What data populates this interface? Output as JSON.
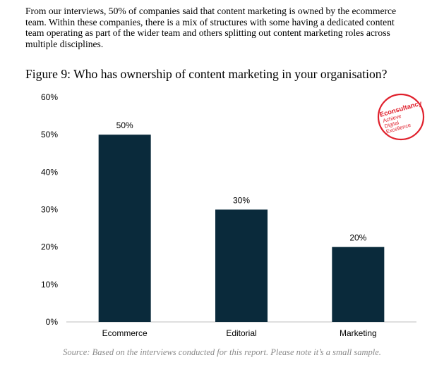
{
  "intro": {
    "lines": [
      "From our interviews, 50% of companies said that content marketing is owned by the ecommerce",
      "team. Within these companies, there is a mix of structures with some having a dedicated content",
      "team operating as part of the wider team and others splitting out content marketing roles across",
      "multiple disciplines."
    ]
  },
  "figure_title": "Figure 9: Who has ownership of content marketing in your organisation?",
  "logo": {
    "lines": [
      "Econsultancy",
      "Achieve",
      "Digital",
      "Excellence"
    ],
    "color": "#e0202c"
  },
  "source": "Source: Based on the interviews conducted for this report. Please note it’s a small sample.",
  "chart_data": {
    "type": "bar",
    "categories": [
      "Ecommerce",
      "Editorial",
      "Marketing"
    ],
    "values": [
      50,
      30,
      20
    ],
    "data_labels": [
      "50%",
      "30%",
      "20%"
    ],
    "ylim": [
      0,
      60
    ],
    "yticks": [
      0,
      10,
      20,
      30,
      40,
      50,
      60
    ],
    "ytick_labels": [
      "0%",
      "10%",
      "20%",
      "30%",
      "40%",
      "50%",
      "60%"
    ],
    "grid": false,
    "bar_color": "#0a2a3b",
    "xlabel": "",
    "ylabel": ""
  }
}
